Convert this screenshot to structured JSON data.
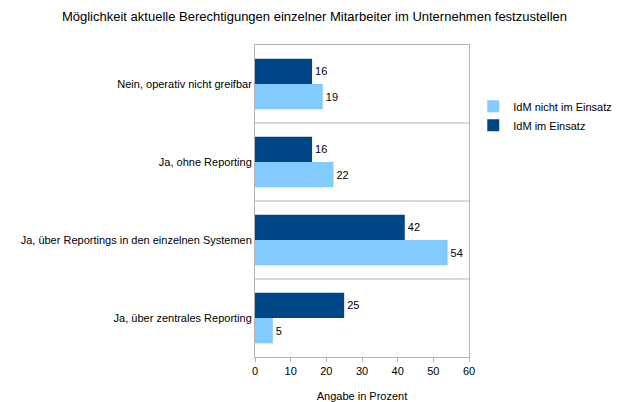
{
  "chart_data": {
    "type": "bar",
    "orientation": "horizontal",
    "title": "Möglichkeit aktuelle Berechtigungen einzelner Mitarbeiter im Unternehmen festzustellen",
    "x_label": "Angabe in Prozent",
    "categories": [
      "Nein, operativ nicht greifbar",
      "Ja, ohne Reporting",
      "Ja, über Reportings in den einzelnen Systemen",
      "Ja, über zentrales Reporting"
    ],
    "series": [
      {
        "name": "IdM nicht im Einsatz",
        "color": "#83caff",
        "values": [
          19,
          22,
          54,
          5
        ]
      },
      {
        "name": "IdM im Einsatz",
        "color": "#004586",
        "values": [
          16,
          16,
          42,
          25
        ]
      }
    ],
    "xlim": [
      0,
      60
    ],
    "xticks": [
      0,
      10,
      20,
      30,
      40,
      50,
      60
    ],
    "grid": true,
    "legend": "right",
    "data_labels": true
  }
}
